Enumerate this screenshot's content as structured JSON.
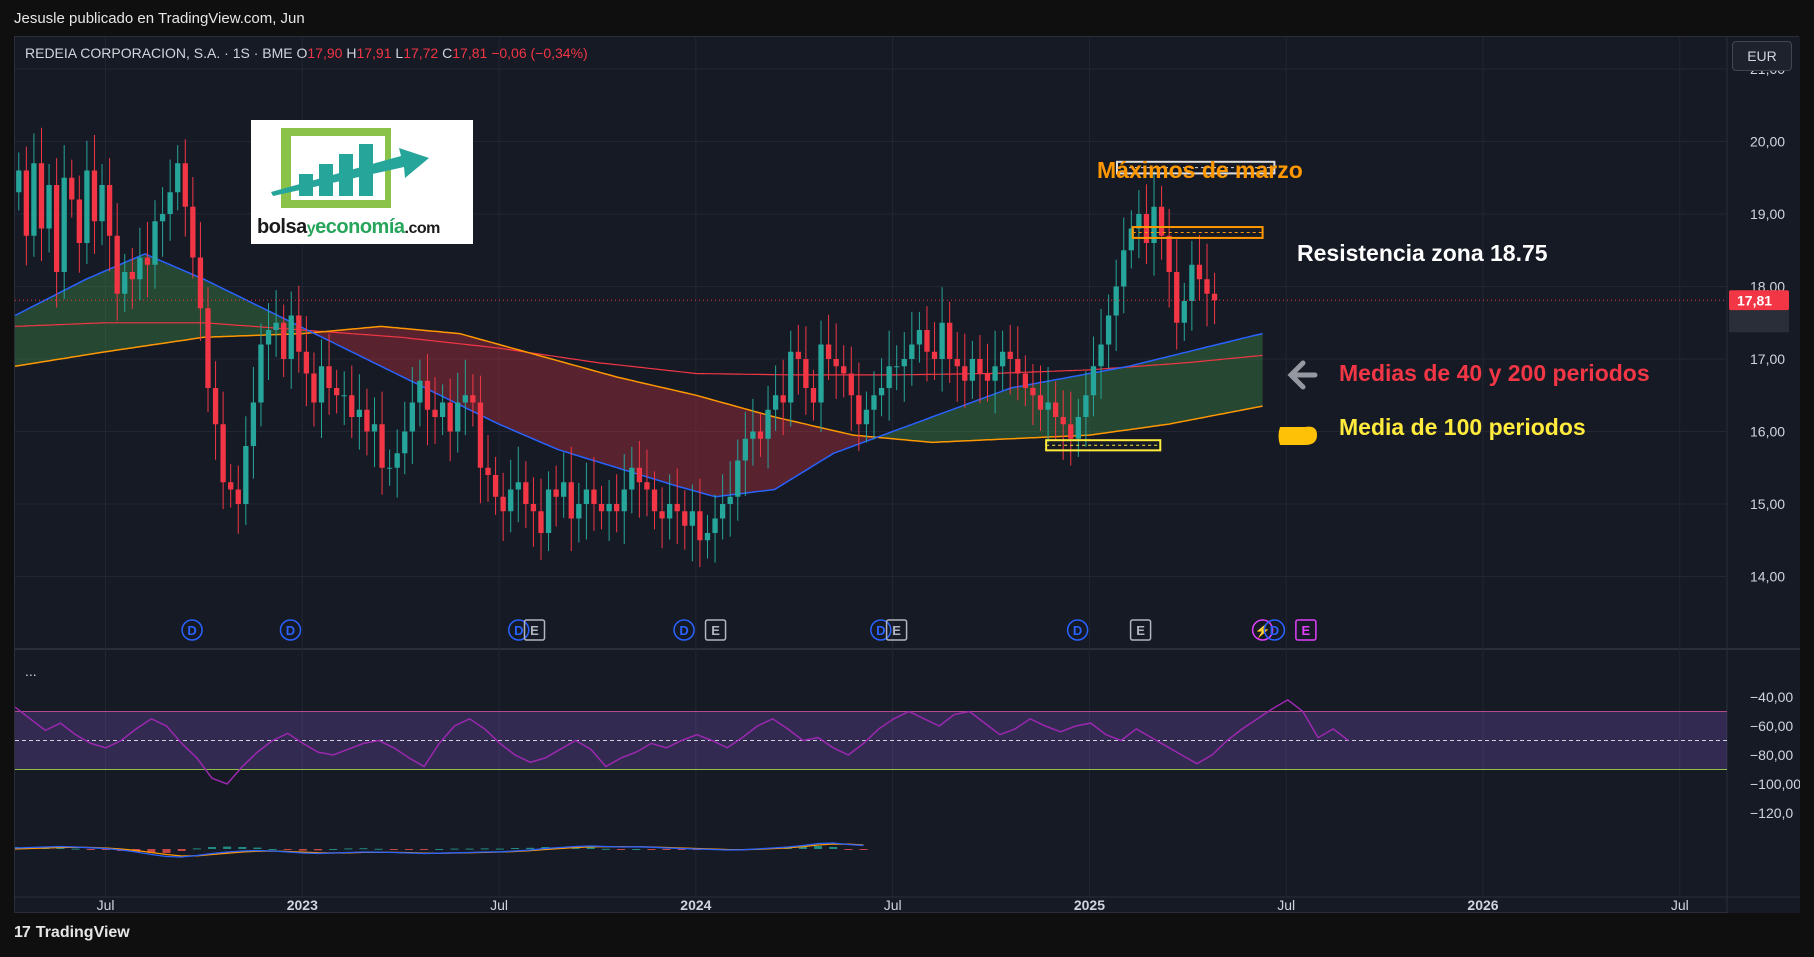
{
  "header": {
    "published_by": "Jesusle publicado en TradingView.com, Jun"
  },
  "legend": {
    "symbol": "REDEIA CORPORACION, S.A. · 1S · BME",
    "o_label": "O",
    "o_value": "17,90",
    "h_label": "H",
    "h_value": "17,91",
    "l_label": "L",
    "l_value": "17,72",
    "c_label": "C",
    "c_value": "17,81",
    "change": "−0,06 (−0,34%)"
  },
  "currency_button": "EUR",
  "logo": {
    "part1": "bolsa",
    "part2": "y",
    "part3": "economía",
    "part4": ".com"
  },
  "annotations": {
    "march_highs": "Máximos de marzo",
    "resistance": "Resistencia zona 18.75",
    "ma_40_200": "Medias de 40 y 200 periodos",
    "ma_100": "Media de 100 periodos"
  },
  "indicator_dots": "...",
  "footer": {
    "brand": "TradingView",
    "brand_mark": "17"
  },
  "colors": {
    "background": "#161a25",
    "up": "#26a69a",
    "down": "#f23645",
    "ma40": "#2962ff",
    "ma100": "#ff9800",
    "ma200": "#f23645",
    "rsi": "#9c27b0",
    "macd": "#2962ff",
    "signal": "#ff9800"
  },
  "event_markers": [
    {
      "time": 2022.72,
      "label": "D"
    },
    {
      "time": 2022.97,
      "label": "D"
    },
    {
      "time": 2023.55,
      "label": "D"
    },
    {
      "time": 2023.59,
      "label": "E"
    },
    {
      "time": 2023.97,
      "label": "D"
    },
    {
      "time": 2024.05,
      "label": "E"
    },
    {
      "time": 2024.47,
      "label": "D"
    },
    {
      "time": 2024.51,
      "label": "E"
    },
    {
      "time": 2024.97,
      "label": "D"
    },
    {
      "time": 2025.13,
      "label": "E"
    },
    {
      "time": 2025.44,
      "label": "⚡"
    },
    {
      "time": 2025.47,
      "label": "D"
    },
    {
      "time": 2025.55,
      "label": "E"
    }
  ],
  "chart_data": [
    {
      "type": "candlestick",
      "title": "REDEIA CORPORACION, S.A. · 1S · BME",
      "x_ticks": [
        {
          "x": 2022.5,
          "label": "Jul"
        },
        {
          "x": 2023.0,
          "label": "2023"
        },
        {
          "x": 2023.5,
          "label": "Jul"
        },
        {
          "x": 2024.0,
          "label": "2024"
        },
        {
          "x": 2024.5,
          "label": "Jul"
        },
        {
          "x": 2025.0,
          "label": "2025"
        },
        {
          "x": 2025.5,
          "label": "Jul"
        },
        {
          "x": 2026.0,
          "label": "2026"
        },
        {
          "x": 2026.5,
          "label": "Jul"
        }
      ],
      "y_ticks": [
        "14,00",
        "15,00",
        "16,00",
        "17,00",
        "18,00",
        "19,00",
        "20,00",
        "21,00"
      ],
      "ylim": [
        13.2,
        21.3
      ],
      "xlim": [
        2022.27,
        2026.62
      ],
      "last_price": 17.81,
      "last_price_label": "17,81",
      "candles": {
        "t_start": 2022.27,
        "t_step": 0.01923,
        "closes": [
          19.6,
          18.7,
          19.7,
          18.8,
          19.4,
          18.2,
          19.5,
          19.2,
          18.6,
          19.6,
          18.9,
          19.4,
          18.7,
          17.9,
          18.2,
          18.1,
          18.4,
          18.3,
          18.9,
          19.0,
          19.3,
          19.7,
          19.1,
          18.4,
          17.7,
          16.6,
          16.1,
          15.3,
          15.2,
          15.0,
          15.8,
          16.4,
          17.2,
          17.4,
          17.5,
          17.0,
          17.6,
          17.1,
          16.8,
          16.4,
          16.9,
          16.6,
          16.5,
          16.5,
          16.2,
          16.3,
          16.0,
          16.1,
          15.5,
          15.5,
          15.7,
          16.0,
          16.4,
          16.7,
          16.3,
          16.2,
          16.4,
          16.0,
          16.4,
          16.5,
          16.4,
          15.5,
          15.4,
          15.1,
          14.9,
          15.2,
          15.3,
          15.0,
          14.9,
          14.6,
          15.2,
          15.1,
          15.3,
          14.8,
          15.0,
          15.2,
          15.0,
          14.9,
          15.0,
          14.9,
          15.2,
          15.5,
          15.3,
          15.2,
          14.9,
          14.8,
          15.0,
          14.9,
          14.7,
          14.9,
          14.5,
          14.6,
          14.8,
          15.0,
          15.1,
          15.6,
          15.9,
          16.0,
          15.9,
          16.3,
          16.5,
          16.4,
          17.1,
          17.0,
          16.6,
          16.4,
          17.2,
          17.0,
          16.9,
          16.8,
          16.5,
          16.1,
          16.3,
          16.5,
          16.6,
          16.9,
          16.9,
          17.0,
          17.2,
          17.4,
          17.1,
          17.0,
          17.5,
          17.0,
          16.9,
          16.7,
          17.0,
          16.8,
          16.7,
          16.9,
          17.1,
          17.0,
          16.8,
          16.6,
          16.5,
          16.3,
          16.4,
          16.2,
          16.1,
          15.9,
          16.2,
          16.5,
          16.9,
          17.2,
          17.6,
          18.0,
          18.5,
          18.8,
          19.0,
          18.6,
          19.1,
          18.7,
          18.2,
          17.5,
          17.8,
          18.3,
          18.1,
          17.9,
          17.81
        ]
      },
      "series": [
        {
          "name": "",
          "line_color": "#2962ff",
          "t": [
            2022.27,
            2022.45,
            2022.6,
            2022.75,
            2022.9,
            2023.05,
            2023.2,
            2023.35,
            2023.5,
            2023.65,
            2023.8,
            2023.95,
            2024.05,
            2024.2,
            2024.35,
            2024.5,
            2024.65,
            2024.8,
            2024.95,
            2025.1,
            2025.25,
            2025.4,
            2025.44
          ],
          "values": [
            17.6,
            18.1,
            18.45,
            18.1,
            17.7,
            17.3,
            16.9,
            16.5,
            16.1,
            15.75,
            15.5,
            15.25,
            15.1,
            15.2,
            15.7,
            16.0,
            16.3,
            16.6,
            16.75,
            16.9,
            17.1,
            17.3,
            17.35
          ]
        },
        {
          "name": "",
          "line_color": "#ff9800",
          "t": [
            2022.27,
            2022.5,
            2022.75,
            2023.0,
            2023.2,
            2023.4,
            2023.6,
            2023.8,
            2024.0,
            2024.2,
            2024.4,
            2024.6,
            2024.8,
            2025.0,
            2025.2,
            2025.44
          ],
          "values": [
            16.9,
            17.1,
            17.3,
            17.35,
            17.45,
            17.35,
            17.05,
            16.75,
            16.5,
            16.2,
            15.95,
            15.85,
            15.9,
            15.95,
            16.1,
            16.35
          ]
        },
        {
          "name": "",
          "line_color": "#f23645",
          "t": [
            2022.27,
            2022.5,
            2022.75,
            2023.0,
            2023.25,
            2023.5,
            2023.75,
            2024.0,
            2024.25,
            2024.5,
            2024.75,
            2025.0,
            2025.25,
            2025.44
          ],
          "values": [
            17.45,
            17.5,
            17.5,
            17.4,
            17.3,
            17.15,
            16.95,
            16.8,
            16.78,
            16.78,
            16.8,
            16.85,
            16.95,
            17.05
          ]
        }
      ],
      "annotation_boxes": [
        {
          "x0": 2025.07,
          "x1": 2025.47,
          "y0": 19.56,
          "y1": 19.72,
          "color": "#e0e0e0"
        },
        {
          "x0": 2025.11,
          "x1": 2025.44,
          "y0": 18.67,
          "y1": 18.82,
          "color": "#ff9800"
        },
        {
          "x0": 2024.89,
          "x1": 2025.18,
          "y0": 15.74,
          "y1": 15.88,
          "color": "#ffeb3b"
        }
      ]
    },
    {
      "type": "line",
      "title": "",
      "y_ticks": [
        "−40,00",
        "−60,00",
        "−80,00",
        "−100,00",
        "−120,0"
      ],
      "ylim": [
        -127,
        -36
      ],
      "band": [
        -50,
        -90
      ],
      "midline": -70,
      "series": [
        {
          "name": "",
          "t_start": 2022.27,
          "t_step": 0.0385,
          "values": [
            -47,
            -55,
            -63,
            -58,
            -66,
            -72,
            -75,
            -70,
            -62,
            -55,
            -60,
            -72,
            -82,
            -96,
            -100,
            -88,
            -78,
            -70,
            -65,
            -72,
            -78,
            -80,
            -76,
            -72,
            -70,
            -75,
            -82,
            -88,
            -72,
            -60,
            -55,
            -62,
            -72,
            -80,
            -85,
            -82,
            -76,
            -70,
            -76,
            -88,
            -82,
            -78,
            -72,
            -75,
            -70,
            -66,
            -70,
            -75,
            -68,
            -60,
            -55,
            -62,
            -70,
            -68,
            -75,
            -80,
            -72,
            -62,
            -55,
            -50,
            -55,
            -60,
            -52,
            -50,
            -58,
            -66,
            -62,
            -55,
            -60,
            -64,
            -60,
            -58,
            -66,
            -70,
            -62,
            -68,
            -74,
            -80,
            -86,
            -80,
            -70,
            -62,
            -55,
            -48,
            -42,
            -50,
            -68,
            -62,
            -70
          ]
        }
      ]
    },
    {
      "type": "line",
      "title": "",
      "ylim": [
        -0.9,
        0.8
      ],
      "series": [
        {
          "name": "",
          "t_start": 2022.27,
          "t_step": 0.0385,
          "values": [
            0.1,
            0.15,
            0.2,
            0.25,
            0.2,
            0.12,
            0.05,
            -0.1,
            -0.3,
            -0.55,
            -0.75,
            -0.8,
            -0.65,
            -0.45,
            -0.3,
            -0.2,
            -0.15,
            -0.2,
            -0.3,
            -0.4,
            -0.45,
            -0.4,
            -0.35,
            -0.3,
            -0.32,
            -0.35,
            -0.4,
            -0.45,
            -0.42,
            -0.38,
            -0.35,
            -0.3,
            -0.28,
            -0.2,
            -0.1,
            0.05,
            0.15,
            0.25,
            0.3,
            0.25,
            0.2,
            0.22,
            0.18,
            0.1,
            0.05,
            0.0,
            -0.05,
            -0.1,
            -0.08,
            0.0,
            0.1,
            0.2,
            0.35,
            0.55,
            0.6,
            0.45,
            0.35
          ]
        },
        {
          "name": "",
          "t_start": 2022.27,
          "t_step": 0.0385,
          "values": [
            0.0,
            0.05,
            0.1,
            0.15,
            0.18,
            0.15,
            0.1,
            0.0,
            -0.15,
            -0.35,
            -0.55,
            -0.7,
            -0.68,
            -0.55,
            -0.42,
            -0.3,
            -0.22,
            -0.2,
            -0.25,
            -0.32,
            -0.38,
            -0.4,
            -0.38,
            -0.34,
            -0.33,
            -0.34,
            -0.37,
            -0.41,
            -0.42,
            -0.4,
            -0.37,
            -0.33,
            -0.3,
            -0.25,
            -0.16,
            -0.05,
            0.05,
            0.15,
            0.22,
            0.24,
            0.22,
            0.22,
            0.2,
            0.15,
            0.1,
            0.05,
            0.0,
            -0.05,
            -0.06,
            -0.03,
            0.04,
            0.12,
            0.24,
            0.4,
            0.5,
            0.48,
            0.4
          ]
        }
      ]
    }
  ]
}
